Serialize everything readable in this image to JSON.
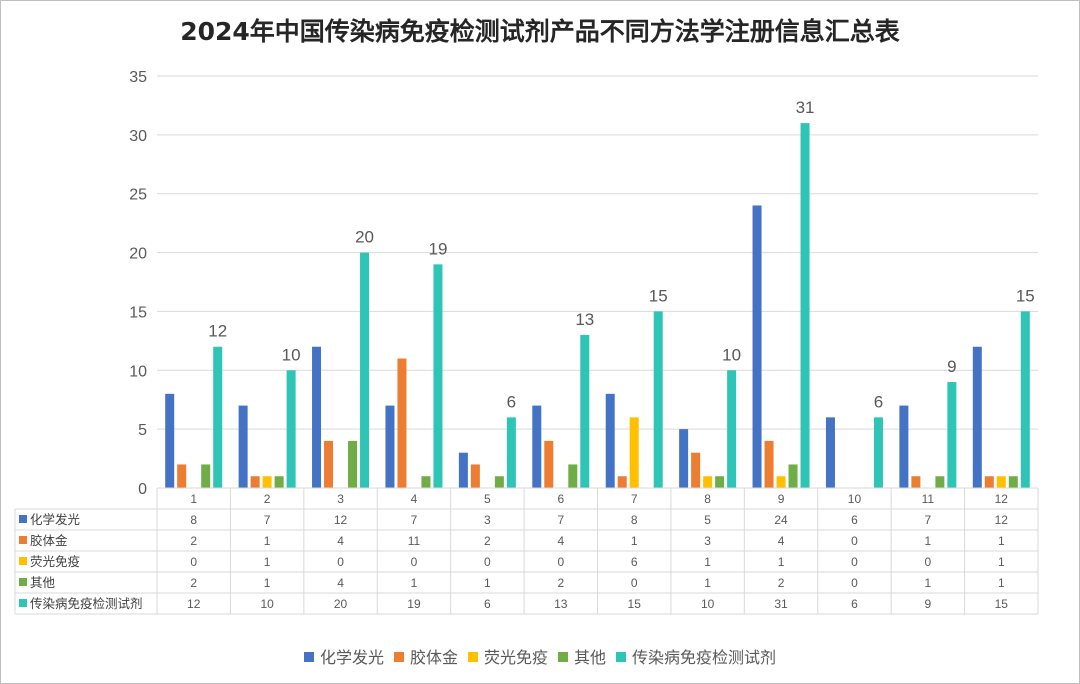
{
  "chart_data": {
    "type": "bar",
    "title": "2024年中国传染病免疫检测试剂产品不同方法学注册信息汇总表",
    "categories": [
      "1",
      "2",
      "3",
      "4",
      "5",
      "6",
      "7",
      "8",
      "9",
      "10",
      "11",
      "12"
    ],
    "ylim": [
      0,
      35
    ],
    "yticks": [
      0,
      5,
      10,
      15,
      20,
      25,
      30,
      35
    ],
    "grid": true,
    "legend_position": "bottom",
    "data_table": true,
    "series": [
      {
        "name": "化学发光",
        "color": "#4472C4",
        "values": [
          8,
          7,
          12,
          7,
          3,
          7,
          8,
          5,
          24,
          6,
          7,
          12
        ]
      },
      {
        "name": "胶体金",
        "color": "#ED7D31",
        "values": [
          2,
          1,
          4,
          11,
          2,
          4,
          1,
          3,
          4,
          0,
          1,
          1
        ]
      },
      {
        "name": "荧光免疫",
        "color": "#FFC000",
        "values": [
          0,
          1,
          0,
          0,
          0,
          0,
          6,
          1,
          1,
          0,
          0,
          1
        ]
      },
      {
        "name": "其他",
        "color": "#70AD47",
        "values": [
          2,
          1,
          4,
          1,
          1,
          2,
          0,
          1,
          2,
          0,
          1,
          1
        ]
      },
      {
        "name": "传染病免疫检测试剂",
        "color": "#2EC4B6",
        "values": [
          12,
          10,
          20,
          19,
          6,
          13,
          15,
          10,
          31,
          6,
          9,
          15
        ],
        "data_labels": true
      }
    ]
  }
}
